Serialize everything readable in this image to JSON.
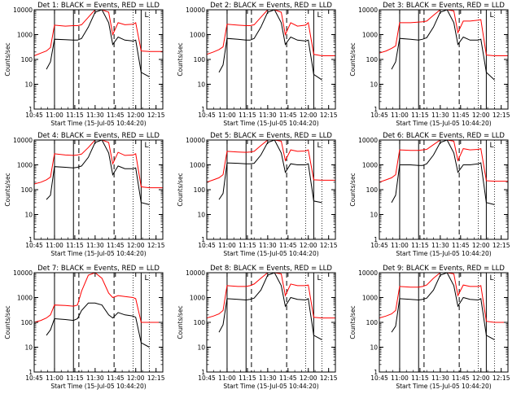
{
  "window": {
    "background": "#ffffff",
    "colors": {
      "events": "#000000",
      "lld": "#ff0000",
      "axes": "#000000"
    }
  },
  "shared": {
    "xlabel": "Start Time (15-Jul-05 10:44:20)",
    "ylabel": "Counts/sec",
    "x_tick_labels": [
      "10:45",
      "11:00",
      "11:15",
      "11:30",
      "11:45",
      "12:00",
      "12:15"
    ],
    "y_tick_labels": [
      "1",
      "10",
      "100",
      "1000",
      "10000"
    ],
    "legend_mark": "L"
  },
  "chart_data": [
    {
      "type": "line",
      "title": "Det 1: BLACK = Events, RED = LLD",
      "y_scale": "log",
      "ylim": [
        1,
        10000
      ],
      "xlim": [
        "10:45",
        "12:20"
      ],
      "x": [
        "10:45",
        "10:50",
        "10:54",
        "10:57",
        "11:00",
        "11:08",
        "11:14",
        "11:17",
        "11:20",
        "11:25",
        "11:30",
        "11:35",
        "11:40",
        "11:43",
        "11:47",
        "11:52",
        "11:58",
        "12:00",
        "12:04",
        "12:10",
        "12:20"
      ],
      "series": [
        {
          "name": "Events",
          "color": "#000000",
          "values": [
            null,
            null,
            40,
            80,
            650,
            620,
            600,
            600,
            700,
            2000,
            8000,
            10000,
            3000,
            400,
            800,
            600,
            550,
            600,
            30,
            20,
            null
          ]
        },
        {
          "name": "LLD",
          "color": "#ff0000",
          "values": [
            140,
            180,
            220,
            300,
            2400,
            2200,
            2300,
            2300,
            2500,
            5000,
            10000,
            10000,
            8000,
            1000,
            3000,
            2500,
            2600,
            3000,
            220,
            210,
            210
          ]
        }
      ],
      "vertical_solid": [
        "11:00",
        "11:14",
        "12:04"
      ],
      "vertical_dashed": [
        "11:18",
        "11:44"
      ],
      "vertical_dotted": [
        "11:58",
        "12:10"
      ]
    },
    {
      "type": "line",
      "title": "Det 2: BLACK = Events, RED = LLD",
      "y_scale": "log",
      "ylim": [
        1,
        10000
      ],
      "xlim": [
        "10:45",
        "12:20"
      ],
      "x": [
        "10:45",
        "10:50",
        "10:54",
        "10:57",
        "11:00",
        "11:08",
        "11:14",
        "11:17",
        "11:20",
        "11:25",
        "11:30",
        "11:35",
        "11:40",
        "11:43",
        "11:47",
        "11:52",
        "11:58",
        "12:00",
        "12:04",
        "12:10",
        "12:20"
      ],
      "series": [
        {
          "name": "Events",
          "color": "#000000",
          "values": [
            null,
            null,
            30,
            60,
            700,
            650,
            600,
            600,
            700,
            2000,
            8000,
            10000,
            3000,
            400,
            800,
            600,
            550,
            600,
            25,
            15,
            null
          ]
        },
        {
          "name": "LLD",
          "color": "#ff0000",
          "values": [
            160,
            200,
            250,
            320,
            2600,
            2400,
            2300,
            2300,
            2500,
            5000,
            10000,
            10000,
            8000,
            1000,
            3000,
            2200,
            2400,
            3000,
            160,
            140,
            140
          ]
        }
      ],
      "vertical_solid": [
        "11:00",
        "11:14",
        "12:04"
      ],
      "vertical_dashed": [
        "11:18",
        "11:44"
      ],
      "vertical_dotted": [
        "11:58",
        "12:10"
      ]
    },
    {
      "type": "line",
      "title": "Det 3: BLACK = Events, RED = LLD",
      "y_scale": "log",
      "ylim": [
        1,
        10000
      ],
      "xlim": [
        "10:45",
        "12:20"
      ],
      "x": [
        "10:45",
        "10:50",
        "10:54",
        "10:57",
        "11:00",
        "11:08",
        "11:14",
        "11:17",
        "11:20",
        "11:25",
        "11:30",
        "11:35",
        "11:40",
        "11:43",
        "11:47",
        "11:52",
        "11:58",
        "12:00",
        "12:04",
        "12:10",
        "12:20"
      ],
      "series": [
        {
          "name": "Events",
          "color": "#000000",
          "values": [
            null,
            null,
            40,
            80,
            700,
            650,
            600,
            650,
            750,
            2000,
            8000,
            10000,
            3000,
            400,
            800,
            600,
            600,
            650,
            30,
            15,
            null
          ]
        },
        {
          "name": "LLD",
          "color": "#ff0000",
          "values": [
            180,
            220,
            280,
            350,
            3000,
            3000,
            3200,
            3300,
            3500,
            6000,
            10000,
            10000,
            9000,
            1200,
            3500,
            3500,
            3800,
            4000,
            150,
            140,
            140
          ]
        }
      ],
      "vertical_solid": [
        "11:00",
        "11:14",
        "12:04"
      ],
      "vertical_dashed": [
        "11:18",
        "11:44"
      ],
      "vertical_dotted": [
        "11:58",
        "12:10"
      ]
    },
    {
      "type": "line",
      "title": "Det 4: BLACK = Events, RED = LLD",
      "y_scale": "log",
      "ylim": [
        1,
        10000
      ],
      "xlim": [
        "10:45",
        "12:20"
      ],
      "x": [
        "10:45",
        "10:50",
        "10:54",
        "10:57",
        "11:00",
        "11:08",
        "11:14",
        "11:17",
        "11:20",
        "11:25",
        "11:30",
        "11:35",
        "11:40",
        "11:43",
        "11:47",
        "11:52",
        "11:58",
        "12:00",
        "12:04",
        "12:10",
        "12:20"
      ],
      "series": [
        {
          "name": "Events",
          "color": "#000000",
          "values": [
            null,
            null,
            40,
            60,
            850,
            800,
            750,
            800,
            900,
            2000,
            8000,
            10000,
            3000,
            400,
            900,
            700,
            700,
            750,
            30,
            25,
            null
          ]
        },
        {
          "name": "LLD",
          "color": "#ff0000",
          "values": [
            170,
            200,
            250,
            320,
            2800,
            2500,
            2400,
            2500,
            2700,
            5000,
            10000,
            10000,
            8000,
            1100,
            3200,
            2400,
            2500,
            2800,
            130,
            120,
            120
          ]
        }
      ],
      "vertical_solid": [
        "11:00",
        "11:14",
        "12:04"
      ],
      "vertical_dashed": [
        "11:18",
        "11:44"
      ],
      "vertical_dotted": [
        "11:58",
        "12:10"
      ]
    },
    {
      "type": "line",
      "title": "Det 5: BLACK = Events, RED = LLD",
      "y_scale": "log",
      "ylim": [
        1,
        10000
      ],
      "xlim": [
        "10:45",
        "12:20"
      ],
      "x": [
        "10:45",
        "10:50",
        "10:54",
        "10:57",
        "11:00",
        "11:08",
        "11:14",
        "11:17",
        "11:20",
        "11:25",
        "11:30",
        "11:35",
        "11:40",
        "11:43",
        "11:47",
        "11:52",
        "11:58",
        "12:00",
        "12:04",
        "12:10",
        "12:20"
      ],
      "series": [
        {
          "name": "Events",
          "color": "#000000",
          "values": [
            null,
            null,
            40,
            70,
            1200,
            1150,
            1100,
            1100,
            1150,
            2500,
            8000,
            10000,
            3000,
            500,
            1100,
            1000,
            1000,
            1100,
            35,
            30,
            null
          ]
        },
        {
          "name": "LLD",
          "color": "#ff0000",
          "values": [
            200,
            250,
            300,
            400,
            3500,
            3300,
            3200,
            3300,
            3500,
            6000,
            10000,
            10000,
            9000,
            1500,
            4000,
            3500,
            3600,
            4000,
            250,
            240,
            240
          ]
        }
      ],
      "vertical_solid": [
        "11:00",
        "11:14",
        "12:04"
      ],
      "vertical_dashed": [
        "11:18",
        "11:44"
      ],
      "vertical_dotted": [
        "11:58",
        "12:10"
      ]
    },
    {
      "type": "line",
      "title": "Det 6: BLACK = Events, RED = LLD",
      "y_scale": "log",
      "ylim": [
        1,
        10000
      ],
      "xlim": [
        "10:45",
        "12:20"
      ],
      "x": [
        "10:45",
        "10:50",
        "10:54",
        "10:57",
        "11:00",
        "11:08",
        "11:14",
        "11:17",
        "11:20",
        "11:25",
        "11:30",
        "11:35",
        "11:40",
        "11:43",
        "11:47",
        "11:52",
        "11:58",
        "12:00",
        "12:04",
        "12:10",
        "12:20"
      ],
      "series": [
        {
          "name": "Events",
          "color": "#000000",
          "values": [
            null,
            null,
            30,
            60,
            1000,
            1000,
            950,
            950,
            1100,
            2500,
            8000,
            10000,
            3000,
            500,
            1000,
            1000,
            1100,
            1200,
            30,
            25,
            null
          ]
        },
        {
          "name": "LLD",
          "color": "#ff0000",
          "values": [
            200,
            250,
            300,
            400,
            4000,
            3800,
            3800,
            4000,
            4200,
            6500,
            10000,
            10000,
            9000,
            1500,
            4500,
            4000,
            4200,
            4500,
            230,
            220,
            220
          ]
        }
      ],
      "vertical_solid": [
        "11:00",
        "11:14",
        "12:04"
      ],
      "vertical_dashed": [
        "11:18",
        "11:44"
      ],
      "vertical_dotted": [
        "11:58",
        "12:10"
      ]
    },
    {
      "type": "line",
      "title": "Det 7: BLACK = Events, RED = LLD",
      "y_scale": "log",
      "ylim": [
        1,
        10000
      ],
      "xlim": [
        "10:45",
        "12:20"
      ],
      "x": [
        "10:45",
        "10:50",
        "10:54",
        "10:57",
        "11:00",
        "11:08",
        "11:14",
        "11:17",
        "11:20",
        "11:25",
        "11:30",
        "11:35",
        "11:40",
        "11:43",
        "11:47",
        "11:52",
        "11:58",
        "12:00",
        "12:04",
        "12:10",
        "12:20"
      ],
      "series": [
        {
          "name": "Events",
          "color": "#000000",
          "values": [
            null,
            null,
            30,
            50,
            140,
            130,
            120,
            140,
            300,
            600,
            600,
            500,
            200,
            150,
            250,
            200,
            180,
            160,
            15,
            10,
            null
          ]
        },
        {
          "name": "LLD",
          "color": "#ff0000",
          "values": [
            100,
            120,
            150,
            200,
            500,
            480,
            450,
            500,
            1800,
            8000,
            10000,
            6000,
            1500,
            1000,
            1200,
            1100,
            1000,
            900,
            100,
            100,
            100
          ]
        }
      ],
      "vertical_solid": [
        "11:00",
        "11:14",
        "12:04"
      ],
      "vertical_dashed": [
        "11:18",
        "11:44"
      ],
      "vertical_dotted": [
        "11:58",
        "12:10"
      ]
    },
    {
      "type": "line",
      "title": "Det 8: BLACK = Events, RED = LLD",
      "y_scale": "log",
      "ylim": [
        1,
        10000
      ],
      "xlim": [
        "10:45",
        "12:20"
      ],
      "x": [
        "10:45",
        "10:50",
        "10:54",
        "10:57",
        "11:00",
        "11:08",
        "11:14",
        "11:17",
        "11:20",
        "11:25",
        "11:30",
        "11:35",
        "11:40",
        "11:43",
        "11:47",
        "11:52",
        "11:58",
        "12:00",
        "12:04",
        "12:10",
        "12:20"
      ],
      "series": [
        {
          "name": "Events",
          "color": "#000000",
          "values": [
            null,
            null,
            40,
            80,
            900,
            850,
            800,
            850,
            950,
            2000,
            8000,
            10000,
            3000,
            450,
            1000,
            850,
            800,
            900,
            30,
            20,
            null
          ]
        },
        {
          "name": "LLD",
          "color": "#ff0000",
          "values": [
            150,
            180,
            220,
            300,
            3000,
            2800,
            2800,
            3000,
            3500,
            6000,
            10000,
            10000,
            9000,
            1200,
            3500,
            3000,
            3000,
            3200,
            160,
            150,
            150
          ]
        }
      ],
      "vertical_solid": [
        "11:00",
        "11:14",
        "12:04"
      ],
      "vertical_dashed": [
        "11:18",
        "11:44"
      ],
      "vertical_dotted": [
        "11:58",
        "12:10"
      ]
    },
    {
      "type": "line",
      "title": "Det 9: BLACK = Events, RED = LLD",
      "y_scale": "log",
      "ylim": [
        1,
        10000
      ],
      "xlim": [
        "10:45",
        "12:20"
      ],
      "x": [
        "10:45",
        "10:50",
        "10:54",
        "10:57",
        "11:00",
        "11:08",
        "11:14",
        "11:17",
        "11:20",
        "11:25",
        "11:30",
        "11:35",
        "11:40",
        "11:43",
        "11:47",
        "11:52",
        "11:58",
        "12:00",
        "12:04",
        "12:10",
        "12:20"
      ],
      "series": [
        {
          "name": "Events",
          "color": "#000000",
          "values": [
            null,
            null,
            40,
            70,
            900,
            850,
            800,
            850,
            950,
            2000,
            8000,
            10000,
            3000,
            450,
            1000,
            850,
            800,
            900,
            30,
            20,
            null
          ]
        },
        {
          "name": "LLD",
          "color": "#ff0000",
          "values": [
            150,
            180,
            220,
            300,
            2800,
            2600,
            2600,
            2800,
            3200,
            6000,
            10000,
            10000,
            9000,
            1200,
            3200,
            2800,
            2800,
            3000,
            110,
            100,
            100
          ]
        }
      ],
      "vertical_solid": [
        "11:00",
        "11:14",
        "12:04"
      ],
      "vertical_dashed": [
        "11:18",
        "11:44"
      ],
      "vertical_dotted": [
        "11:58",
        "12:10"
      ]
    }
  ]
}
